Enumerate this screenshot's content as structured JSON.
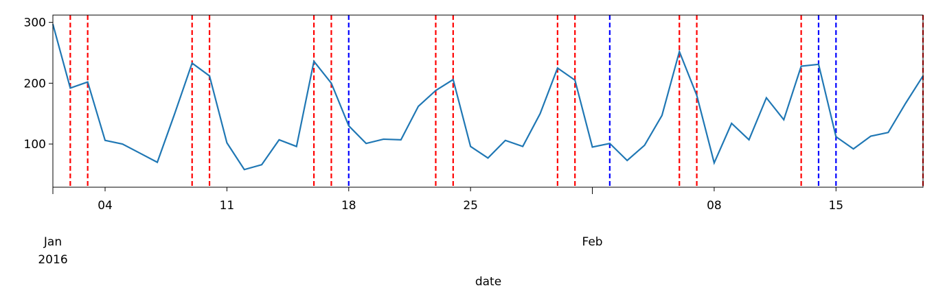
{
  "chart_data": {
    "type": "line",
    "x_label": "date",
    "x": [
      "2016-01-01",
      "2016-01-02",
      "2016-01-03",
      "2016-01-04",
      "2016-01-05",
      "2016-01-06",
      "2016-01-07",
      "2016-01-08",
      "2016-01-09",
      "2016-01-10",
      "2016-01-11",
      "2016-01-12",
      "2016-01-13",
      "2016-01-14",
      "2016-01-15",
      "2016-01-16",
      "2016-01-17",
      "2016-01-18",
      "2016-01-19",
      "2016-01-20",
      "2016-01-21",
      "2016-01-22",
      "2016-01-23",
      "2016-01-24",
      "2016-01-25",
      "2016-01-26",
      "2016-01-27",
      "2016-01-28",
      "2016-01-29",
      "2016-01-30",
      "2016-01-31",
      "2016-02-01",
      "2016-02-02",
      "2016-02-03",
      "2016-02-04",
      "2016-02-05",
      "2016-02-06",
      "2016-02-07",
      "2016-02-08",
      "2016-02-09",
      "2016-02-10",
      "2016-02-11",
      "2016-02-12",
      "2016-02-13",
      "2016-02-14",
      "2016-02-15",
      "2016-02-16",
      "2016-02-17",
      "2016-02-18",
      "2016-02-19",
      "2016-02-20"
    ],
    "series": [
      {
        "color": "#1f77b4",
        "values": [
          297,
          192,
          202,
          106,
          100,
          85,
          70,
          150,
          233,
          212,
          102,
          58,
          66,
          107,
          96,
          236,
          200,
          130,
          101,
          108,
          107,
          162,
          188,
          206,
          96,
          77,
          106,
          96,
          150,
          225,
          205,
          95,
          101,
          73,
          98,
          147,
          252,
          180,
          69,
          134,
          107,
          176,
          140,
          228,
          231,
          112,
          92,
          113,
          119,
          167,
          212
        ]
      }
    ],
    "xlim": [
      "2016-01-01",
      "2016-02-20"
    ],
    "xticks": [
      {
        "value": "2016-01-01",
        "label": "Jan\n2016"
      },
      {
        "value": "2016-01-04",
        "label": "04"
      },
      {
        "value": "2016-01-11",
        "label": "11"
      },
      {
        "value": "2016-01-18",
        "label": "18"
      },
      {
        "value": "2016-01-25",
        "label": "25"
      },
      {
        "value": "2016-02-01",
        "label": "Feb"
      },
      {
        "value": "2016-02-08",
        "label": "08"
      },
      {
        "value": "2016-02-15",
        "label": "15"
      }
    ],
    "ylim": [
      29,
      312
    ],
    "yticks": [
      100,
      200,
      300
    ],
    "vlines": [
      {
        "x": "2016-01-02",
        "color": "red"
      },
      {
        "x": "2016-01-03",
        "color": "red"
      },
      {
        "x": "2016-01-09",
        "color": "red"
      },
      {
        "x": "2016-01-10",
        "color": "red"
      },
      {
        "x": "2016-01-16",
        "color": "red"
      },
      {
        "x": "2016-01-17",
        "color": "red"
      },
      {
        "x": "2016-01-18",
        "color": "blue"
      },
      {
        "x": "2016-01-23",
        "color": "red"
      },
      {
        "x": "2016-01-24",
        "color": "red"
      },
      {
        "x": "2016-01-30",
        "color": "red"
      },
      {
        "x": "2016-01-31",
        "color": "red"
      },
      {
        "x": "2016-02-02",
        "color": "blue"
      },
      {
        "x": "2016-02-06",
        "color": "red"
      },
      {
        "x": "2016-02-07",
        "color": "red"
      },
      {
        "x": "2016-02-13",
        "color": "red"
      },
      {
        "x": "2016-02-14",
        "color": "blue"
      },
      {
        "x": "2016-02-15",
        "color": "blue"
      },
      {
        "x": "2016-02-20",
        "color": "red"
      }
    ]
  }
}
